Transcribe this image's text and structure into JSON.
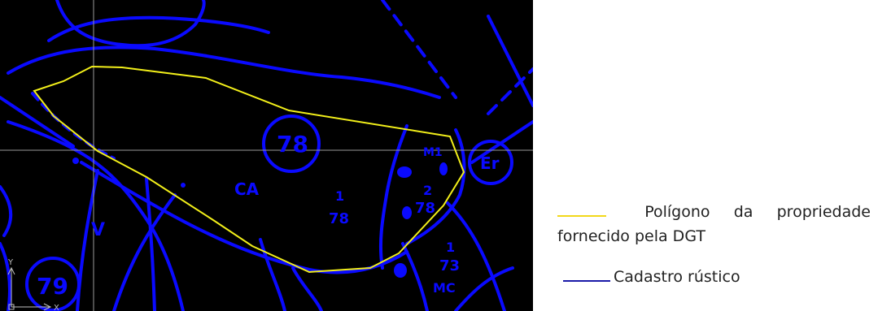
{
  "map": {
    "parcel_labels": [
      "78",
      "CA",
      "1",
      "78",
      "2",
      "78",
      "1",
      "73",
      "MC",
      "79",
      "Er",
      "V",
      "M1"
    ],
    "axis_labels": {
      "y": "Y",
      "x": "X"
    },
    "colors": {
      "background": "#000000",
      "cadastre": "#0a0aff",
      "polygon": "#f2ef1a",
      "crosshair": "#9a9a9a"
    }
  },
  "legend": {
    "polygon": {
      "words": [
        "Polígono",
        "da",
        "propriedade"
      ],
      "line2": "fornecido pela DGT",
      "color": "#f2d81a"
    },
    "cadastre": {
      "label": "Cadastro rústico",
      "color": "#1a1aa8"
    }
  }
}
